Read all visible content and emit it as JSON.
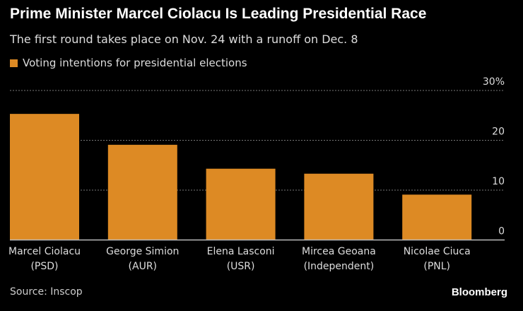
{
  "title": "Prime Minister Marcel Ciolacu Is Leading Presidential Race",
  "subtitle": "The first round takes place on Nov. 24 with a runoff on Dec. 8",
  "source": "Source: Inscop",
  "brand": "Bloomberg",
  "chart_data": {
    "type": "bar",
    "categories": [
      [
        "Marcel Ciolacu",
        "(PSD)"
      ],
      [
        "George Simion",
        "(AUR)"
      ],
      [
        "Elena Lasconi",
        "(USR)"
      ],
      [
        "Mircea Geoana",
        "(Independent)"
      ],
      [
        "Nicolae Ciuca",
        "(PNL)"
      ]
    ],
    "series": [
      {
        "name": "Voting intentions for presidential elections",
        "values": [
          25.3,
          19.1,
          14.3,
          13.3,
          9.1
        ],
        "color": "#DD8A24"
      }
    ],
    "ylim": [
      0,
      30
    ],
    "yticks": [
      {
        "v": 0,
        "label": "0"
      },
      {
        "v": 10,
        "label": "10"
      },
      {
        "v": 20,
        "label": "20"
      },
      {
        "v": 30,
        "label": "30%"
      }
    ],
    "grid": true,
    "legend": "top-left"
  }
}
